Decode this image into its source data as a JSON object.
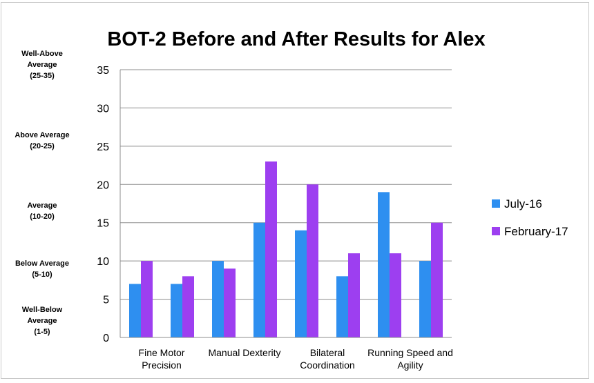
{
  "chart_data": {
    "type": "bar",
    "title": "BOT-2 Before and After Results for Alex",
    "xlabel": "",
    "ylabel": "",
    "ylim": [
      0,
      35
    ],
    "yticks": [
      0,
      5,
      10,
      15,
      20,
      25,
      30,
      35
    ],
    "grid": true,
    "legend_position": "right",
    "category_labels": [
      [
        "Fine Motor",
        "Precision"
      ],
      [
        "Manual Dexterity"
      ],
      [
        "Bilateral",
        "Coordination"
      ],
      [
        "Running Speed and",
        "Agility"
      ]
    ],
    "categories": [
      "Fine Motor Precision",
      "",
      "Manual Dexterity",
      "",
      "Bilateral Coordination",
      "",
      "Running Speed and Agility",
      ""
    ],
    "series": [
      {
        "name": "July-16",
        "color": "#2e8ff0",
        "values": [
          7,
          7,
          10,
          15,
          14,
          8,
          19,
          10
        ]
      },
      {
        "name": "February-17",
        "color": "#9d3ff0",
        "values": [
          10,
          8,
          9,
          23,
          20,
          11,
          11,
          15
        ]
      }
    ],
    "band_labels": [
      {
        "lines": [
          "Well-Above",
          "Average",
          "(25-35)"
        ]
      },
      {
        "lines": [
          "Above Average",
          "(20-25)"
        ]
      },
      {
        "lines": [
          "Average",
          "(10-20)"
        ]
      },
      {
        "lines": [
          "Below Average",
          "(5-10)"
        ]
      },
      {
        "lines": [
          "Well-Below",
          "Average",
          "(1-5)"
        ]
      }
    ]
  }
}
